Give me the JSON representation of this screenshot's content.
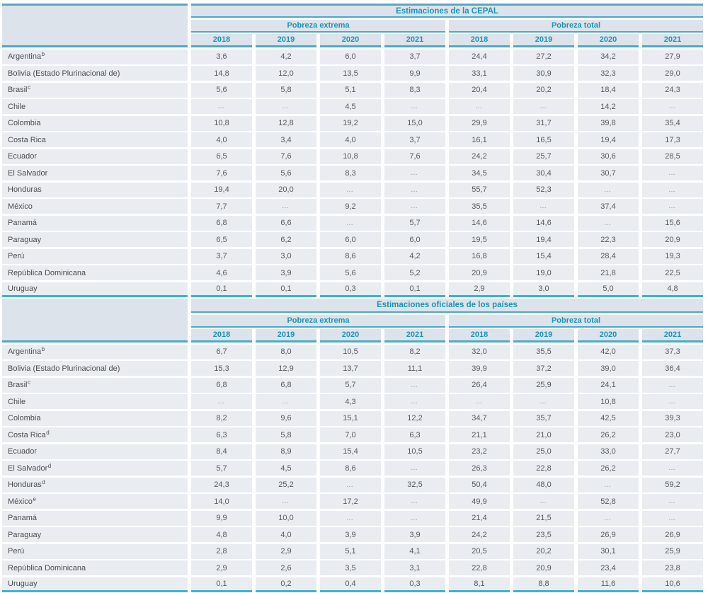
{
  "colors": {
    "accent_text": "#1895b9",
    "rule_teal": "#4aa9c7",
    "section_end_rule": "#35b4d5",
    "header_bg": "#dde3ea",
    "row_bg": "#e9edf2",
    "body_text": "#57585b"
  },
  "years": [
    "2018",
    "2019",
    "2020",
    "2021"
  ],
  "missing_marker": "…",
  "sections": [
    {
      "title": "Estimaciones de la CEPAL",
      "groups": [
        "Pobreza extrema",
        "Pobreza total"
      ],
      "rows": [
        {
          "country": "Argentina",
          "sup": "b",
          "values": [
            "3,6",
            "4,2",
            "6,0",
            "3,7",
            "24,4",
            "27,2",
            "34,2",
            "27,9"
          ]
        },
        {
          "country": "Bolivia (Estado Plurinacional de)",
          "values": [
            "14,8",
            "12,0",
            "13,5",
            "9,9",
            "33,1",
            "30,9",
            "32,3",
            "29,0"
          ]
        },
        {
          "country": "Brasil",
          "sup": "c",
          "values": [
            "5,6",
            "5,8",
            "5,1",
            "8,3",
            "20,4",
            "20,2",
            "18,4",
            "24,3"
          ]
        },
        {
          "country": "Chile",
          "values": [
            "…",
            "…",
            "4,5",
            "…",
            "…",
            "…",
            "14,2",
            "…"
          ]
        },
        {
          "country": "Colombia",
          "values": [
            "10,8",
            "12,8",
            "19,2",
            "15,0",
            "29,9",
            "31,7",
            "39,8",
            "35,4"
          ]
        },
        {
          "country": "Costa Rica",
          "values": [
            "4,0",
            "3,4",
            "4,0",
            "3,7",
            "16,1",
            "16,5",
            "19,4",
            "17,3"
          ]
        },
        {
          "country": "Ecuador",
          "values": [
            "6,5",
            "7,6",
            "10,8",
            "7,6",
            "24,2",
            "25,7",
            "30,6",
            "28,5"
          ]
        },
        {
          "country": "El Salvador",
          "values": [
            "7,6",
            "5,6",
            "8,3",
            "…",
            "34,5",
            "30,4",
            "30,7",
            "…"
          ]
        },
        {
          "country": "Honduras",
          "values": [
            "19,4",
            "20,0",
            "…",
            "…",
            "55,7",
            "52,3",
            "…",
            "…"
          ]
        },
        {
          "country": "México",
          "values": [
            "7,7",
            "…",
            "9,2",
            "…",
            "35,5",
            "…",
            "37,4",
            "…"
          ]
        },
        {
          "country": "Panamá",
          "values": [
            "6,8",
            "6,6",
            "…",
            "5,7",
            "14,6",
            "14,6",
            "…",
            "15,6"
          ]
        },
        {
          "country": "Paraguay",
          "values": [
            "6,5",
            "6,2",
            "6,0",
            "6,0",
            "19,5",
            "19,4",
            "22,3",
            "20,9"
          ]
        },
        {
          "country": "Perú",
          "values": [
            "3,7",
            "3,0",
            "8,6",
            "4,2",
            "16,8",
            "15,4",
            "28,4",
            "19,3"
          ]
        },
        {
          "country": "República Dominicana",
          "values": [
            "4,6",
            "3,9",
            "5,6",
            "5,2",
            "20,9",
            "19,0",
            "21,8",
            "22,5"
          ]
        },
        {
          "country": "Uruguay",
          "values": [
            "0,1",
            "0,1",
            "0,3",
            "0,1",
            "2,9",
            "3,0",
            "5,0",
            "4,8"
          ]
        }
      ]
    },
    {
      "title": "Estimaciones oficiales de los países",
      "groups": [
        "Pobreza extrema",
        "Pobreza total"
      ],
      "rows": [
        {
          "country": "Argentina",
          "sup": "b",
          "values": [
            "6,7",
            "8,0",
            "10,5",
            "8,2",
            "32,0",
            "35,5",
            "42,0",
            "37,3"
          ]
        },
        {
          "country": "Bolivia (Estado Plurinacional de)",
          "values": [
            "15,3",
            "12,9",
            "13,7",
            "11,1",
            "39,9",
            "37,2",
            "39,0",
            "36,4"
          ]
        },
        {
          "country": "Brasil",
          "sup": "c",
          "values": [
            "6,8",
            "6,8",
            "5,7",
            "…",
            "26,4",
            "25,9",
            "24,1",
            "…"
          ]
        },
        {
          "country": "Chile",
          "values": [
            "…",
            "…",
            "4,3",
            "…",
            "…",
            "…",
            "10,8",
            "…"
          ]
        },
        {
          "country": "Colombia",
          "values": [
            "8,2",
            "9,6",
            "15,1",
            "12,2",
            "34,7",
            "35,7",
            "42,5",
            "39,3"
          ]
        },
        {
          "country": "Costa Rica",
          "sup": "d",
          "values": [
            "6,3",
            "5,8",
            "7,0",
            "6,3",
            "21,1",
            "21,0",
            "26,2",
            "23,0"
          ]
        },
        {
          "country": "Ecuador",
          "values": [
            "8,4",
            "8,9",
            "15,4",
            "10,5",
            "23,2",
            "25,0",
            "33,0",
            "27,7"
          ]
        },
        {
          "country": "El Salvador",
          "sup": "d",
          "values": [
            "5,7",
            "4,5",
            "8,6",
            "…",
            "26,3",
            "22,8",
            "26,2",
            "…"
          ]
        },
        {
          "country": "Honduras",
          "sup": "d",
          "values": [
            "24,3",
            "25,2",
            "…",
            "32,5",
            "50,4",
            "48,0",
            "…",
            "59,2"
          ]
        },
        {
          "country": "México",
          "sup": "e",
          "values": [
            "14,0",
            "…",
            "17,2",
            "…",
            "49,9",
            "…",
            "52,8",
            "…"
          ]
        },
        {
          "country": "Panamá",
          "values": [
            "9,9",
            "10,0",
            "…",
            "…",
            "21,4",
            "21,5",
            "…",
            "…"
          ]
        },
        {
          "country": "Paraguay",
          "values": [
            "4,8",
            "4,0",
            "3,9",
            "3,9",
            "24,2",
            "23,5",
            "26,9",
            "26,9"
          ]
        },
        {
          "country": "Perú",
          "values": [
            "2,8",
            "2,9",
            "5,1",
            "4,1",
            "20,5",
            "20,2",
            "30,1",
            "25,9"
          ]
        },
        {
          "country": "República Dominicana",
          "values": [
            "2,9",
            "2,6",
            "3,5",
            "3,1",
            "22,8",
            "20,9",
            "23,4",
            "23,8"
          ]
        },
        {
          "country": "Uruguay",
          "values": [
            "0,1",
            "0,2",
            "0,4",
            "0,3",
            "8,1",
            "8,8",
            "11,6",
            "10,6"
          ]
        }
      ]
    }
  ]
}
